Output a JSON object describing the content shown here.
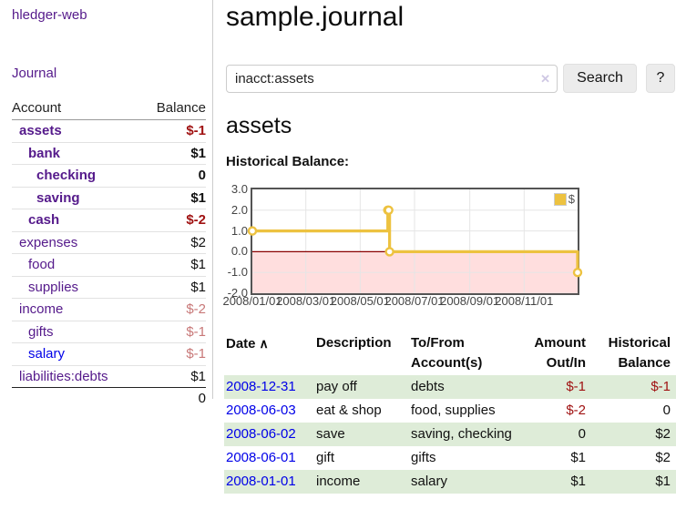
{
  "app": {
    "title": "hledger-web"
  },
  "sidebar": {
    "journal_link": "Journal",
    "accounts": {
      "headers": {
        "account": "Account",
        "balance": "Balance"
      },
      "rows": [
        {
          "name": "assets",
          "balance": "$-1"
        },
        {
          "name": "bank",
          "balance": "$1"
        },
        {
          "name": "checking",
          "balance": "0"
        },
        {
          "name": "saving",
          "balance": "$1"
        },
        {
          "name": "cash",
          "balance": "$-2"
        },
        {
          "name": "expenses",
          "balance": "$2"
        },
        {
          "name": "food",
          "balance": "$1"
        },
        {
          "name": "supplies",
          "balance": "$1"
        },
        {
          "name": "income",
          "balance": "$-2"
        },
        {
          "name": "gifts",
          "balance": "$-1"
        },
        {
          "name": "salary",
          "balance": "$-1"
        },
        {
          "name": "liabilities:debts",
          "balance": "$1"
        }
      ],
      "total": "0"
    }
  },
  "main": {
    "title": "sample.journal",
    "search": {
      "value": "inacct:assets",
      "clear_icon": "✕",
      "button_label": "Search",
      "help_label": "?"
    },
    "account_heading": "assets",
    "chart_label": "Historical Balance:"
  },
  "chart_data": {
    "type": "line",
    "title": "Historical Balance:",
    "step": true,
    "series": [
      {
        "name": "$",
        "color": "#edc240",
        "points": [
          [
            "2008-01-01",
            1
          ],
          [
            "2008-06-01",
            2
          ],
          [
            "2008-06-02",
            2
          ],
          [
            "2008-06-03",
            0
          ],
          [
            "2008-12-31",
            -1
          ]
        ]
      }
    ],
    "x_range": [
      "2008-01-01",
      "2008-12-31"
    ],
    "ylim": [
      -2,
      3
    ],
    "y_tick_labels": [
      "3.0",
      "2.0",
      "1.0",
      "0.0",
      "-1.0",
      "-2.0"
    ],
    "y_tick_values": [
      3,
      2,
      1,
      0,
      -1,
      -2
    ],
    "x_tick_labels": [
      "2008/01/01",
      "2008/03/01",
      "2008/05/01",
      "2008/07/01",
      "2008/09/01",
      "2008/11/01"
    ],
    "x_tick_dates": [
      "2008-01-01",
      "2008-03-01",
      "2008-05-01",
      "2008-07-01",
      "2008-09-01",
      "2008-11-01"
    ],
    "grid": true,
    "zero_line_color": "#8b0000",
    "negative_fill": "#ffdede",
    "grid_color": "#e5e5e5",
    "legend": {
      "position": "top-right",
      "label": "$"
    }
  },
  "register": {
    "headers": {
      "date": "Date",
      "sort_icon": "∧",
      "description": "Description",
      "accounts": "To/From Account(s)",
      "amount": "Amount Out/In",
      "balance": "Historical Balance"
    },
    "rows": [
      {
        "date": "2008-12-31",
        "description": "pay off",
        "accounts": "debts",
        "amount": "$-1",
        "balance": "$-1"
      },
      {
        "date": "2008-06-03",
        "description": "eat & shop",
        "accounts": "food, supplies",
        "amount": "$-2",
        "balance": "0"
      },
      {
        "date": "2008-06-02",
        "description": "save",
        "accounts": "saving, checking",
        "amount": "0",
        "balance": "$2"
      },
      {
        "date": "2008-06-01",
        "description": "gift",
        "accounts": "gifts",
        "amount": "$1",
        "balance": "$2"
      },
      {
        "date": "2008-01-01",
        "description": "income",
        "accounts": "salary",
        "amount": "$1",
        "balance": "$1"
      }
    ]
  },
  "colors": {
    "link_purple": "#551a8b",
    "link_blue": "#0000e8",
    "negative_strong": "#a01212",
    "negative_soft": "#c87878",
    "row_green": "#deecd8",
    "series_gold": "#edc240"
  }
}
